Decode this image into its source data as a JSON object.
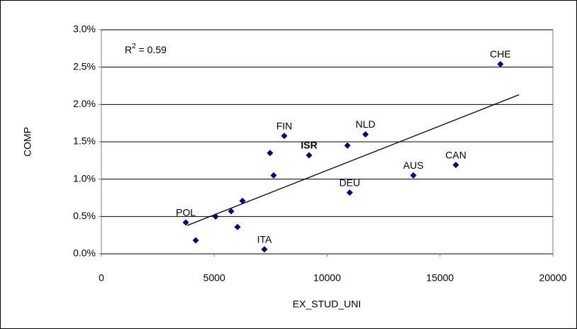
{
  "chart_data": {
    "type": "scatter",
    "annotation": {
      "text": "R",
      "superscript": "2",
      "suffix": " = 0.59"
    },
    "x_label": "EX_STUD_UNI",
    "y_label": "COMP",
    "xlim": [
      0,
      20000
    ],
    "xticks": [
      0,
      5000,
      10000,
      15000,
      20000
    ],
    "ylim": [
      0,
      3
    ],
    "yticks": [
      {
        "value": 0,
        "label": "0.0%"
      },
      {
        "value": 0.5,
        "label": "0.5%"
      },
      {
        "value": 1,
        "label": "1.0%"
      },
      {
        "value": 1.5,
        "label": "1.5%"
      },
      {
        "value": 2,
        "label": "2.0%"
      },
      {
        "value": 2.5,
        "label": "2.5%"
      },
      {
        "value": 3,
        "label": "3.0%"
      }
    ],
    "grid": true,
    "series": [
      {
        "color": "#000080",
        "x": [
          17675,
          15700,
          13820,
          11000,
          11700,
          10900,
          9200,
          8100,
          7470,
          7630,
          7220,
          6250,
          6030,
          5750,
          5060,
          3740,
          4180
        ],
        "values": [
          2.54,
          1.19,
          1.05,
          0.82,
          1.6,
          1.45,
          1.32,
          1.58,
          1.35,
          1.05,
          0.06,
          0.71,
          0.36,
          0.57,
          0.5,
          0.42,
          0.18
        ],
        "labels": [
          "CHE",
          "CAN",
          "AUS",
          "DEU",
          "NLD",
          null,
          "ISR",
          "FIN",
          null,
          null,
          "ITA",
          null,
          null,
          null,
          null,
          "POL",
          null
        ],
        "bold": [
          false,
          false,
          false,
          false,
          false,
          false,
          true,
          false,
          false,
          false,
          false,
          false,
          false,
          false,
          false,
          false,
          false
        ]
      }
    ],
    "trendline": {
      "color": "#000000",
      "x": [
        3800,
        18500
      ],
      "values": [
        0.38,
        2.13
      ]
    }
  }
}
